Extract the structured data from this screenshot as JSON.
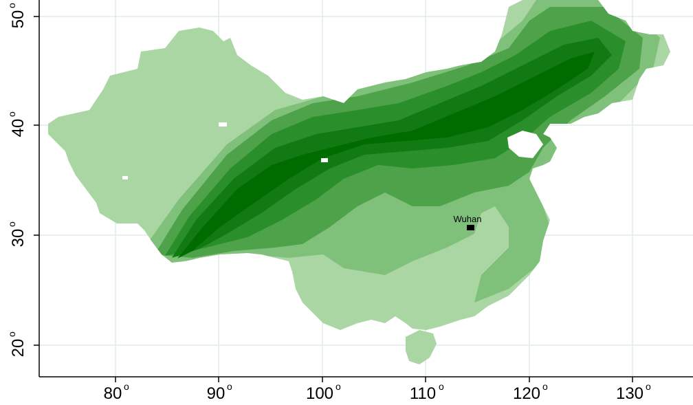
{
  "map": {
    "colors": {
      "background": "#ffffff",
      "gridline": "#e8f0ee",
      "axis": "#000000",
      "levels": [
        "#a9d6a2",
        "#7fc17a",
        "#4ea34a",
        "#2a8f2a",
        "#127a12",
        "#006c00"
      ]
    },
    "x_axis": {
      "ticks": [
        {
          "value": "80",
          "deg": "o"
        },
        {
          "value": "90",
          "deg": "o"
        },
        {
          "value": "100",
          "deg": "o"
        },
        {
          "value": "110",
          "deg": "o"
        },
        {
          "value": "120",
          "deg": "o"
        },
        {
          "value": "130",
          "deg": "o"
        }
      ]
    },
    "y_axis": {
      "ticks": [
        {
          "value": "20",
          "deg": "o"
        },
        {
          "value": "30",
          "deg": "o"
        },
        {
          "value": "40",
          "deg": "o"
        },
        {
          "value": "50",
          "deg": "o"
        }
      ]
    },
    "city": {
      "name": "Wuhan",
      "marker": "square-marker"
    }
  }
}
